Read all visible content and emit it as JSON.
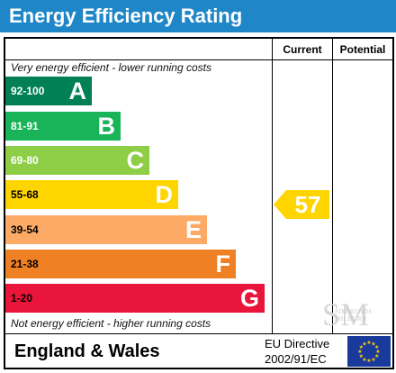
{
  "title": "Energy Efficiency Rating",
  "columns": {
    "current": "Current",
    "potential": "Potential"
  },
  "top_note": "Very energy efficient - lower running costs",
  "bottom_note": "Not energy efficient - higher running costs",
  "bands": [
    {
      "range": "92-100",
      "letter": "A",
      "color": "#008054",
      "range_color": "#ffffff"
    },
    {
      "range": "81-91",
      "letter": "B",
      "color": "#19b459",
      "range_color": "#ffffff"
    },
    {
      "range": "69-80",
      "letter": "C",
      "color": "#8dce46",
      "range_color": "#ffffff"
    },
    {
      "range": "55-68",
      "letter": "D",
      "color": "#ffd500",
      "range_color": "#000000"
    },
    {
      "range": "39-54",
      "letter": "E",
      "color": "#fcaa65",
      "range_color": "#000000"
    },
    {
      "range": "21-38",
      "letter": "F",
      "color": "#ef8023",
      "range_color": "#000000"
    },
    {
      "range": "1-20",
      "letter": "G",
      "color": "#e9153b",
      "range_color": "#000000"
    }
  ],
  "current_rating": {
    "value": "57",
    "band": "D",
    "color": "#ffd500"
  },
  "potential_rating": null,
  "footer": {
    "country": "England & Wales",
    "directive_line1": "EU Directive",
    "directive_line2": "2002/91/EC",
    "flag_icon": "eu-flag-icon",
    "flag_color": "#1a3a9b",
    "star_color": "#ffcc00"
  },
  "watermark": {
    "monogram": "SM",
    "text": "Simmonds Milburn"
  }
}
